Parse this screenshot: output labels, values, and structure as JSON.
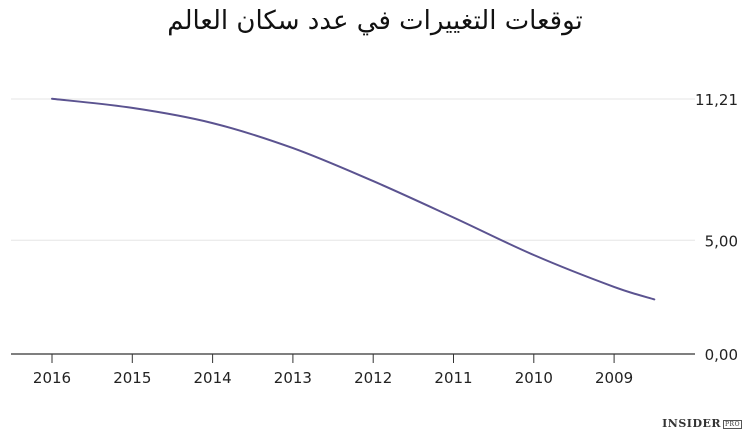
{
  "chart_data": {
    "type": "line",
    "title": "توقعات التغييرات في عدد سكان العالم",
    "categories": [
      "2016",
      "2015",
      "2014",
      "2013",
      "2012",
      "2011",
      "2010",
      "2009"
    ],
    "y_tick_labels": [
      "11,21",
      "5,00",
      "0,00"
    ],
    "y_ticks": [
      11.21,
      5.0,
      0.0
    ],
    "ylim": [
      0,
      11.21
    ],
    "series": [
      {
        "x": [
          0,
          1,
          2,
          3,
          4,
          5,
          6,
          7,
          7.5
        ],
        "values": [
          11.22,
          10.82,
          10.15,
          9.05,
          7.6,
          6.0,
          4.35,
          2.95,
          2.4
        ]
      }
    ],
    "grid": true,
    "y_axis_side": "right"
  },
  "colors": {
    "line": "#5b5390",
    "grid": "#e6e6e6",
    "axis": "#333333",
    "text": "#222222"
  },
  "brand": {
    "name": "INSIDER",
    "badge": "PRO"
  }
}
